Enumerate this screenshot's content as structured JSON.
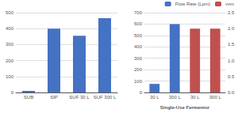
{
  "chart_data": [
    {
      "type": "bar",
      "categories": [
        "SUB",
        "SIP",
        "SUF 30 L",
        "SUF 300 L"
      ],
      "values": [
        10,
        400,
        355,
        465
      ],
      "color": "#4472C4",
      "ylim": [
        0,
        500
      ],
      "yticks": [
        0,
        100,
        200,
        300,
        400,
        500
      ],
      "grid": true
    },
    {
      "type": "bar",
      "categories": [
        "30 L",
        "300 L",
        "30 L",
        "300 L"
      ],
      "xlabel": "Single-Use Fermentor",
      "series": [
        {
          "name": "Flow Rate (Lpm)",
          "color": "#4472C4",
          "values": [
            75,
            600,
            null,
            null
          ]
        },
        {
          "name": "vvm",
          "color": "#C0504D",
          "values": [
            null,
            null,
            560,
            560
          ]
        }
      ],
      "ylim": [
        0,
        700
      ],
      "yticks": [
        0,
        100,
        200,
        300,
        400,
        500,
        600,
        700
      ],
      "y2lim": [
        0,
        2.5
      ],
      "y2ticks": [
        {
          "value": 0,
          "label": "0.0"
        },
        0.5,
        {
          "value": 1,
          "label": "1.0"
        },
        1.5,
        {
          "value": 2,
          "label": "2.0"
        },
        2.5
      ],
      "grid": true,
      "legend": "upper right"
    }
  ]
}
